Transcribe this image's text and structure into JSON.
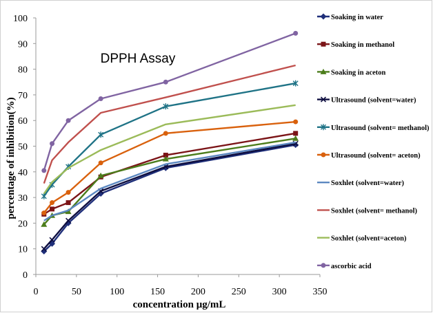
{
  "chart_data": {
    "type": "line",
    "title": "DPPH Assay",
    "xlabel": "concentration μg/mL",
    "ylabel": "percentage of inhibition(%)",
    "xlim": [
      0,
      350
    ],
    "ylim": [
      0,
      100
    ],
    "xticks": [
      "0",
      "50",
      "100",
      "150",
      "200",
      "250",
      "300",
      "350"
    ],
    "yticks": [
      "0",
      "10",
      "20",
      "30",
      "40",
      "50",
      "60",
      "70",
      "80",
      "90",
      "100"
    ],
    "x": [
      10,
      20,
      40,
      80,
      160,
      320
    ],
    "grid": false,
    "legend_position": "right",
    "series": [
      {
        "name": "Soaking in water",
        "color": "#1f2f7a",
        "marker": "diamond",
        "values": [
          9,
          12,
          20,
          31.5,
          41.5,
          50.5
        ]
      },
      {
        "name": "Soaking in methanol",
        "color": "#7b1417",
        "marker": "square",
        "values": [
          23.5,
          25.5,
          28,
          38,
          46.5,
          55
        ]
      },
      {
        "name": "Soaking in aceton",
        "color": "#4c7d1c",
        "marker": "triangle",
        "values": [
          19.5,
          23,
          24.5,
          38.5,
          45,
          53
        ]
      },
      {
        "name": "Ultrasound (solvent=water)",
        "color": "#0e0e40",
        "marker": "x",
        "values": [
          10,
          13.5,
          21,
          32.5,
          42,
          51
        ]
      },
      {
        "name": "Ultrasound (solvent= methanol)",
        "color": "#1f7386",
        "marker": "star",
        "values": [
          30.5,
          35,
          42,
          54.5,
          65.5,
          74.5
        ]
      },
      {
        "name": "Ultrasound (solvent= aceton)",
        "color": "#d9610d",
        "marker": "circle",
        "values": [
          24,
          28,
          32,
          43.5,
          55,
          59.5
        ]
      },
      {
        "name": "Soxhlet  (solvent=water)",
        "color": "#5b87c0",
        "marker": "none",
        "values": [
          21,
          23,
          25,
          33.5,
          43,
          51.5
        ]
      },
      {
        "name": "Soxhlet  (solvent= methanol)",
        "color": "#c0504d",
        "marker": "none",
        "values": [
          35.5,
          44.5,
          51.5,
          63,
          69,
          81.5
        ]
      },
      {
        "name": "Soxhlet  (solvent=aceton)",
        "color": "#9bbb59",
        "marker": "none",
        "values": [
          31.5,
          36,
          41.5,
          48.5,
          58.5,
          66
        ]
      },
      {
        "name": "ascorbic acid",
        "color": "#8064a2",
        "marker": "circle",
        "values": [
          40.5,
          51,
          60,
          68.5,
          75,
          94
        ]
      }
    ]
  }
}
